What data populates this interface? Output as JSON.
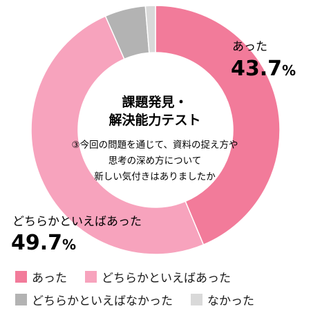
{
  "chart_data": {
    "type": "pie",
    "donut": true,
    "title_lines": [
      "課題発見・",
      "解決能力テスト"
    ],
    "question_lines": [
      "③今回の問題を通じて、資料の捉え方や",
      "思考の深め方について",
      "新しい気付きはありましたか"
    ],
    "categories": [
      "あった",
      "どちらかといえばあった",
      "どちらかといえばなかった",
      "なかった"
    ],
    "values": [
      43.7,
      49.7,
      5.3,
      1.3
    ],
    "labels": [
      {
        "text": "あった",
        "value": "43.7",
        "unit": "%"
      },
      {
        "text": "どちらかといえばあった",
        "value": "49.7",
        "unit": "%"
      }
    ],
    "colors": [
      "#f27b9a",
      "#f7a3bd",
      "#b3b3b3",
      "#d9d9d9"
    ],
    "legend_position": "bottom"
  }
}
